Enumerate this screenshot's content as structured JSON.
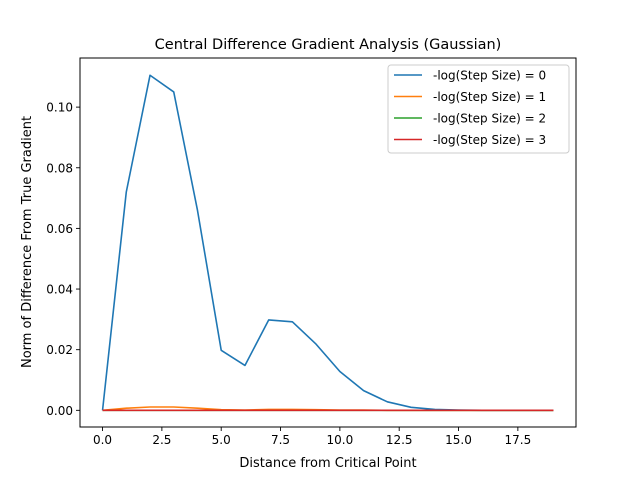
{
  "chart_data": {
    "type": "line",
    "title": "Central Difference Gradient Analysis (Gaussian)",
    "xlabel": "Distance from Critical Point",
    "ylabel": "Norm of Difference From True Gradient",
    "xlim": [
      -0.95,
      19.95
    ],
    "ylim": [
      -0.0055,
      0.1162
    ],
    "xticks": [
      0.0,
      2.5,
      5.0,
      7.5,
      10.0,
      12.5,
      15.0,
      17.5
    ],
    "xtick_labels": [
      "0.0",
      "2.5",
      "5.0",
      "7.5",
      "10.0",
      "12.5",
      "15.0",
      "17.5"
    ],
    "yticks": [
      0.0,
      0.02,
      0.04,
      0.06,
      0.08,
      0.1
    ],
    "ytick_labels": [
      "0.00",
      "0.02",
      "0.04",
      "0.06",
      "0.08",
      "0.10"
    ],
    "grid": false,
    "legend_position": "top-right",
    "x": [
      0,
      1,
      2,
      3,
      4,
      5,
      6,
      7,
      8,
      9,
      10,
      11,
      12,
      13,
      14,
      15,
      16,
      17,
      18,
      19
    ],
    "series": [
      {
        "name": "-log(Step Size) = 0",
        "color": "#1f77b4",
        "values": [
          0.0,
          0.072,
          0.1105,
          0.105,
          0.066,
          0.0198,
          0.0148,
          0.0298,
          0.0292,
          0.0218,
          0.0128,
          0.0065,
          0.0028,
          0.001,
          0.0003,
          0.0001,
          0.0,
          0.0,
          0.0,
          0.0
        ]
      },
      {
        "name": "-log(Step Size) = 1",
        "color": "#ff7f0e",
        "values": [
          0.0,
          0.0007,
          0.0011,
          0.0011,
          0.0007,
          0.0002,
          0.0001,
          0.0003,
          0.0003,
          0.0002,
          0.0001,
          0.0001,
          0.0,
          0.0,
          0.0,
          0.0,
          0.0,
          0.0,
          0.0,
          0.0
        ]
      },
      {
        "name": "-log(Step Size) = 2",
        "color": "#2ca02c",
        "values": [
          0.0,
          0.0,
          0.0,
          0.0,
          0.0,
          0.0,
          0.0,
          0.0,
          0.0,
          0.0,
          0.0,
          0.0,
          0.0,
          0.0,
          0.0,
          0.0,
          0.0,
          0.0,
          0.0,
          0.0
        ]
      },
      {
        "name": "-log(Step Size) = 3",
        "color": "#d62728",
        "values": [
          0.0,
          0.0,
          0.0,
          0.0,
          0.0,
          0.0,
          0.0,
          0.0,
          0.0,
          0.0,
          0.0,
          0.0,
          0.0,
          0.0,
          0.0,
          0.0,
          0.0,
          0.0,
          0.0,
          0.0
        ]
      }
    ]
  }
}
